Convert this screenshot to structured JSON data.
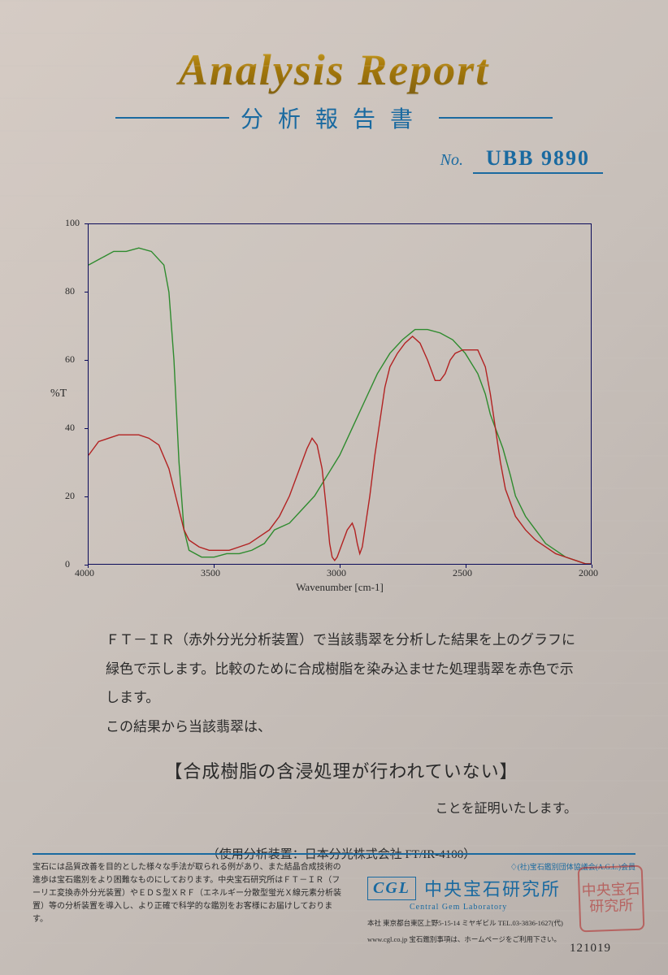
{
  "header": {
    "title_en": "Analysis Report",
    "subtitle_jp": "分析報告書"
  },
  "report_no": {
    "label": "No.",
    "value": "UBB 9890"
  },
  "chart": {
    "type": "line",
    "ylabel": "%T",
    "xlabel": "Wavenumber [cm-1]",
    "xlim": [
      4000,
      2000
    ],
    "ylim": [
      0,
      100
    ],
    "ytick_step": 20,
    "xtick_step": 500,
    "xticks": [
      4000,
      3500,
      3000,
      2500,
      2000
    ],
    "yticks": [
      0,
      20,
      40,
      60,
      80,
      100
    ],
    "border_color": "#0b0b5a",
    "background_color": "transparent",
    "line_width": 1.4,
    "series": [
      {
        "name": "sample-jade-green",
        "color": "#2e8b2e",
        "points": [
          [
            4000,
            88
          ],
          [
            3950,
            90
          ],
          [
            3900,
            92
          ],
          [
            3850,
            92
          ],
          [
            3800,
            93
          ],
          [
            3750,
            92
          ],
          [
            3700,
            88
          ],
          [
            3680,
            80
          ],
          [
            3660,
            60
          ],
          [
            3640,
            30
          ],
          [
            3620,
            10
          ],
          [
            3600,
            4
          ],
          [
            3550,
            2
          ],
          [
            3500,
            2
          ],
          [
            3450,
            3
          ],
          [
            3400,
            3
          ],
          [
            3350,
            4
          ],
          [
            3300,
            6
          ],
          [
            3280,
            8
          ],
          [
            3260,
            10
          ],
          [
            3200,
            12
          ],
          [
            3150,
            16
          ],
          [
            3100,
            20
          ],
          [
            3050,
            26
          ],
          [
            3000,
            32
          ],
          [
            2950,
            40
          ],
          [
            2900,
            48
          ],
          [
            2850,
            56
          ],
          [
            2800,
            62
          ],
          [
            2750,
            66
          ],
          [
            2700,
            69
          ],
          [
            2650,
            69
          ],
          [
            2600,
            68
          ],
          [
            2550,
            66
          ],
          [
            2500,
            62
          ],
          [
            2450,
            56
          ],
          [
            2420,
            50
          ],
          [
            2400,
            44
          ],
          [
            2350,
            34
          ],
          [
            2320,
            26
          ],
          [
            2300,
            20
          ],
          [
            2260,
            14
          ],
          [
            2220,
            10
          ],
          [
            2180,
            6
          ],
          [
            2140,
            4
          ],
          [
            2100,
            2
          ],
          [
            2060,
            1
          ],
          [
            2020,
            0
          ],
          [
            2000,
            0
          ]
        ]
      },
      {
        "name": "resin-treated-red",
        "color": "#b22222",
        "points": [
          [
            4000,
            32
          ],
          [
            3960,
            36
          ],
          [
            3920,
            37
          ],
          [
            3880,
            38
          ],
          [
            3840,
            38
          ],
          [
            3800,
            38
          ],
          [
            3760,
            37
          ],
          [
            3720,
            35
          ],
          [
            3680,
            28
          ],
          [
            3640,
            16
          ],
          [
            3620,
            10
          ],
          [
            3600,
            7
          ],
          [
            3560,
            5
          ],
          [
            3520,
            4
          ],
          [
            3480,
            4
          ],
          [
            3440,
            4
          ],
          [
            3400,
            5
          ],
          [
            3360,
            6
          ],
          [
            3320,
            8
          ],
          [
            3280,
            10
          ],
          [
            3240,
            14
          ],
          [
            3200,
            20
          ],
          [
            3160,
            28
          ],
          [
            3130,
            34
          ],
          [
            3110,
            37
          ],
          [
            3090,
            35
          ],
          [
            3070,
            28
          ],
          [
            3050,
            14
          ],
          [
            3040,
            6
          ],
          [
            3030,
            2
          ],
          [
            3020,
            1
          ],
          [
            3010,
            2
          ],
          [
            2990,
            6
          ],
          [
            2970,
            10
          ],
          [
            2950,
            12
          ],
          [
            2940,
            10
          ],
          [
            2930,
            6
          ],
          [
            2920,
            3
          ],
          [
            2910,
            5
          ],
          [
            2900,
            10
          ],
          [
            2880,
            20
          ],
          [
            2860,
            32
          ],
          [
            2840,
            42
          ],
          [
            2820,
            52
          ],
          [
            2800,
            58
          ],
          [
            2770,
            62
          ],
          [
            2740,
            65
          ],
          [
            2710,
            67
          ],
          [
            2680,
            65
          ],
          [
            2650,
            60
          ],
          [
            2620,
            54
          ],
          [
            2600,
            54
          ],
          [
            2580,
            56
          ],
          [
            2560,
            60
          ],
          [
            2540,
            62
          ],
          [
            2510,
            63
          ],
          [
            2480,
            63
          ],
          [
            2450,
            63
          ],
          [
            2420,
            58
          ],
          [
            2400,
            50
          ],
          [
            2380,
            40
          ],
          [
            2360,
            30
          ],
          [
            2340,
            22
          ],
          [
            2320,
            18
          ],
          [
            2300,
            14
          ],
          [
            2260,
            10
          ],
          [
            2220,
            7
          ],
          [
            2180,
            5
          ],
          [
            2140,
            3
          ],
          [
            2100,
            2
          ],
          [
            2060,
            1
          ],
          [
            2020,
            0
          ],
          [
            2000,
            0
          ]
        ]
      }
    ]
  },
  "body": {
    "p1": "ＦＴ－ＩＲ（赤外分光分析装置）で当該翡翠を分析した結果を上のグラフに緑色で示します。比較のために合成樹脂を染み込ませた処理翡翠を赤色で示します。",
    "p2": "この結果から当該翡翠は、",
    "conclusion": "【合成樹脂の含浸処理が行われていない】",
    "proof": "ことを証明いたします。",
    "equipment": "（使用分析装置：日本分光株式会社 FT/IR-4100）"
  },
  "footer": {
    "left_text": "宝石には品質改善を目的とした様々な手法が取られる例があり、また結晶合成技術の進歩は宝石鑑別をより困難なものにしております。中央宝石研究所はＦＴ－ＩＲ（フーリエ変換赤外分光装置）やＥＤＳ型ＸＲＦ（エネルギー分散型蛍光Ｘ線元素分析装置）等の分析装置を導入し、より正確で科学的な鑑別をお客様にお届けしております。",
    "agl": "♢(社)宝石鑑別団体協議会(A.G.L.)会員",
    "logo": "CGL",
    "lab_name_jp": "中央宝石研究所",
    "lab_name_en": "Central Gem Laboratory",
    "address1": "本社 東京都台東区上野5-15-14 ミヤギビル TEL.03-3836-1627(代)",
    "address2": "www.cgl.co.jp 宝石鑑別事項は、ホームページをご利用下さい。",
    "stamp_text": "中央宝石研究所",
    "serial": "121019"
  }
}
